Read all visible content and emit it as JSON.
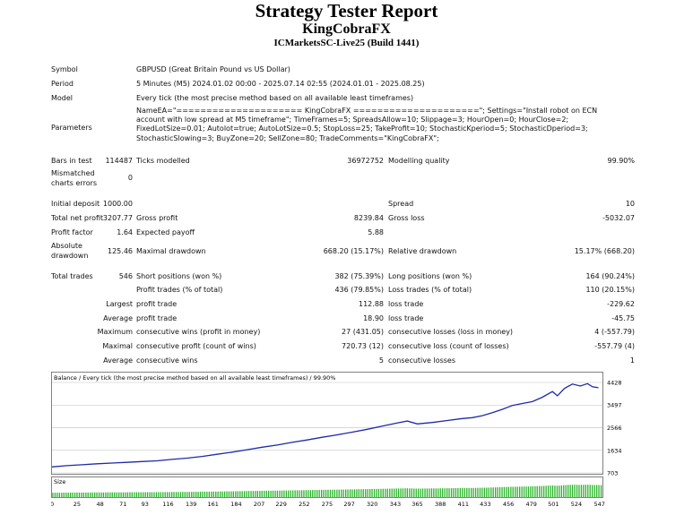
{
  "report": {
    "title": "Strategy Tester Report",
    "ea_name": "KingCobraFX",
    "server": "ICMarketsSC-Live25 (Build 1441)"
  },
  "info": {
    "symbol_label": "Symbol",
    "symbol_value": "GBPUSD (Great Britain Pound vs US Dollar)",
    "period_label": "Period",
    "period_value": "5 Minutes (M5) 2024.01.02 00:00 - 2025.07.14 02:55 (2024.01.01 - 2025.08.25)",
    "model_label": "Model",
    "model_value": "Every tick (the most precise method based on all available least timeframes)",
    "parameters_label": "Parameters",
    "parameters_value": "NameEA=\"===================== KingCobraFX =====================\"; Settings=\"Install robot on ECN account with low spread at M5 timeframe\"; TimeFrames=5; SpreadsAllow=10; Slippage=3; HourOpen=0; HourClose=2; FixedLotSize=0.01; Autolot=true; AutoLotSize=0.5; StopLoss=25; TakeProfit=10; StochasticKperiod=5; StochasticDperiod=3; StochasticSlowing=3; BuyZone=20; SellZone=80; TradeComments=\"KingCobraFX\";"
  },
  "stats": {
    "bars_label": "Bars in test",
    "bars_value": "114487",
    "ticks_label": "Ticks modelled",
    "ticks_value": "36972752",
    "quality_label": "Modelling quality",
    "quality_value": "99.90%",
    "mismatch_label1": "Mismatched",
    "mismatch_label2": "charts errors",
    "mismatch_value": "0",
    "deposit_label": "Initial deposit",
    "deposit_value": "1000.00",
    "spread_label": "Spread",
    "spread_value": "10",
    "netprofit_label": "Total net profit",
    "netprofit_value": "3207.77",
    "grossprofit_label": "Gross profit",
    "grossprofit_value": "8239.84",
    "grossloss_label": "Gross loss",
    "grossloss_value": "-5032.07",
    "pf_label": "Profit factor",
    "pf_value": "1.64",
    "payoff_label": "Expected payoff",
    "payoff_value": "5.88",
    "absdd_label1": "Absolute",
    "absdd_label2": "drawdown",
    "absdd_value": "125.46",
    "maxdd_label": "Maximal drawdown",
    "maxdd_value": "668.20 (15.17%)",
    "reldd_label": "Relative drawdown",
    "reldd_value": "15.17% (668.20)",
    "trades_label": "Total trades",
    "trades_value": "546",
    "short_label": "Short positions (won %)",
    "short_value": "382 (75.39%)",
    "long_label": "Long positions (won %)",
    "long_value": "164 (90.24%)",
    "profittrades_label": "Profit trades (% of total)",
    "profittrades_value": "436 (79.85%)",
    "losstrades_label": "Loss trades (% of total)",
    "losstrades_value": "110 (20.15%)",
    "largest_label": "Largest",
    "largest_profit_label": "profit trade",
    "largest_profit_value": "112.88",
    "largest_loss_label": "loss trade",
    "largest_loss_value": "-229.62",
    "average_label": "Average",
    "average_profit_label": "profit trade",
    "average_profit_value": "18.90",
    "average_loss_label": "loss trade",
    "average_loss_value": "-45.75",
    "maximum_label": "Maximum",
    "max_wins_label": "consecutive wins (profit in money)",
    "max_wins_value": "27 (431.05)",
    "max_losses_label": "consecutive losses (loss in money)",
    "max_losses_value": "4 (-557.79)",
    "maximal_label": "Maximal",
    "maximal_profit_label": "consecutive profit (count of wins)",
    "maximal_profit_value": "720.73 (12)",
    "maximal_loss_label": "consecutive loss (count of losses)",
    "maximal_loss_value": "-557.79 (4)",
    "avgcons_label": "Average",
    "avgcons_wins_label": "consecutive wins",
    "avgcons_wins_value": "5",
    "avgcons_losses_label": "consecutive losses",
    "avgcons_losses_value": "1"
  },
  "chart_data": {
    "type": "line",
    "title": "Balance / Every tick (the most precise method based on all available least timeframes) / 99.90%",
    "size_label": "Size",
    "ylim": [
      703,
      4428
    ],
    "yticks": [
      "4428",
      "3497",
      "2566",
      "1634",
      "703"
    ],
    "xticks": [
      "0",
      "25",
      "48",
      "71",
      "93",
      "116",
      "139",
      "161",
      "184",
      "207",
      "229",
      "252",
      "275",
      "297",
      "320",
      "343",
      "365",
      "388",
      "411",
      "433",
      "456",
      "479",
      "501",
      "524",
      "547"
    ],
    "xlim": [
      0,
      550
    ],
    "series": [
      {
        "values_x": [
          0,
          15,
          30,
          45,
          60,
          75,
          90,
          105,
          120,
          135,
          150,
          165,
          180,
          195,
          210,
          225,
          240,
          255,
          270,
          285,
          300,
          315,
          330,
          345,
          355,
          365,
          380,
          395,
          410,
          420,
          430,
          440,
          450,
          460,
          470,
          480,
          490,
          500,
          505,
          512,
          520,
          528,
          535,
          540,
          546
        ],
        "values_y": [
          950,
          1000,
          1040,
          1080,
          1110,
          1140,
          1170,
          1200,
          1260,
          1310,
          1380,
          1470,
          1560,
          1660,
          1760,
          1850,
          1960,
          2060,
          2170,
          2270,
          2380,
          2500,
          2630,
          2760,
          2840,
          2720,
          2780,
          2860,
          2940,
          2980,
          3060,
          3180,
          3320,
          3480,
          3560,
          3640,
          3820,
          4050,
          3880,
          4180,
          4360,
          4280,
          4380,
          4250,
          4210
        ]
      }
    ],
    "colors": {
      "line": "#1e2aa8",
      "bars": "#28b428",
      "grid": "#c0c0c0"
    }
  }
}
